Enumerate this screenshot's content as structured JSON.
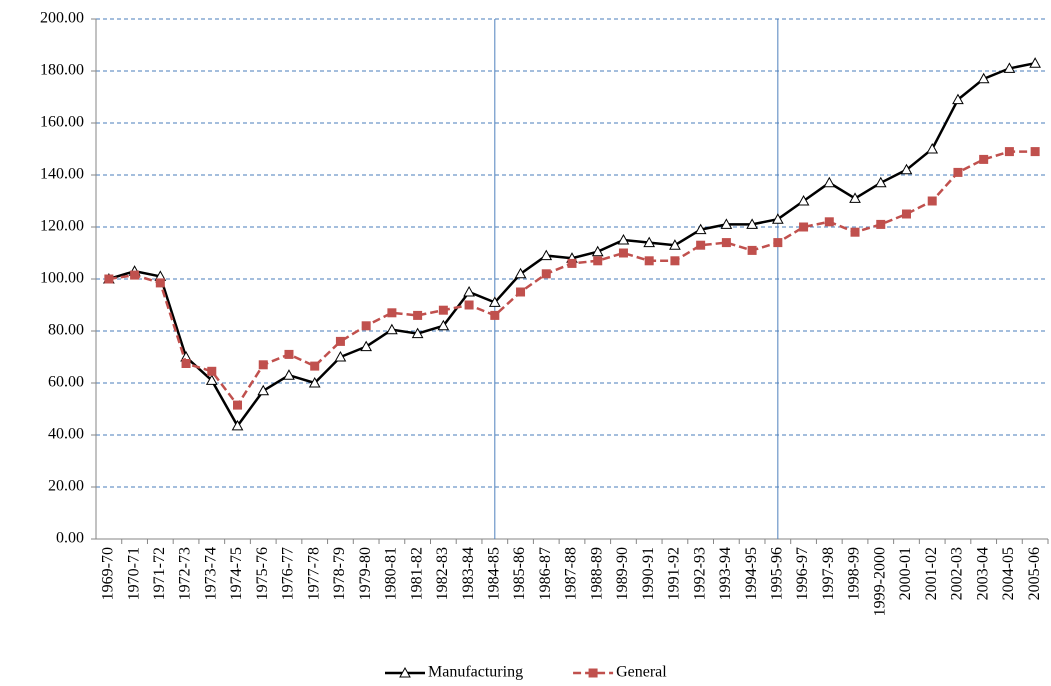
{
  "chart_data": {
    "type": "line",
    "categories": [
      "1969-70",
      "1970-71",
      "1971-72",
      "1972-73",
      "1973-74",
      "1974-75",
      "1975-76",
      "1976-77",
      "1977-78",
      "1978-79",
      "1979-80",
      "1980-81",
      "1981-82",
      "1982-83",
      "1983-84",
      "1984-85",
      "1985-86",
      "1986-87",
      "1987-88",
      "1988-89",
      "1989-90",
      "1990-91",
      "1991-92",
      "1992-93",
      "1993-94",
      "1994-95",
      "1995-96",
      "1996-97",
      "1997-98",
      "1998-99",
      "1999-2000",
      "2000-01",
      "2001-02",
      "2002-03",
      "2003-04",
      "2004-05",
      "2005-06"
    ],
    "series": [
      {
        "name": "Manufacturing",
        "color": "#000000",
        "marker": "triangle",
        "dash": false,
        "values": [
          100,
          103,
          101,
          70,
          61,
          43.5,
          57,
          63,
          60,
          70,
          74,
          80.5,
          79,
          82,
          95,
          91,
          102,
          109,
          108,
          110.5,
          115,
          114,
          113,
          119,
          121,
          121,
          123,
          130,
          137,
          131,
          137,
          142,
          150,
          169,
          177,
          181,
          183
        ]
      },
      {
        "name": "General",
        "color": "#c0504d",
        "marker": "square",
        "dash": true,
        "values": [
          100,
          101.5,
          98.5,
          67.5,
          64.5,
          51.5,
          67,
          71,
          66.5,
          76,
          82,
          87,
          86,
          88,
          90,
          86,
          95,
          102,
          106,
          107,
          110,
          107,
          107,
          113,
          114,
          111,
          114,
          120,
          122,
          118,
          121,
          125,
          130,
          141,
          146,
          149,
          149
        ]
      }
    ],
    "ylim": [
      0,
      200
    ],
    "yticks": [
      {
        "value": 0,
        "label": "0.00"
      },
      {
        "value": 20,
        "label": "20.00"
      },
      {
        "value": 40,
        "label": "40.00"
      },
      {
        "value": 60,
        "label": "60.00"
      },
      {
        "value": 80,
        "label": "80.00"
      },
      {
        "value": 100,
        "label": "100.00"
      },
      {
        "value": 120,
        "label": "120.00"
      },
      {
        "value": 140,
        "label": "140.00"
      },
      {
        "value": 160,
        "label": "160.00"
      },
      {
        "value": 180,
        "label": "180.00"
      },
      {
        "value": 200,
        "label": "200.00"
      }
    ],
    "grid": true,
    "vertical_lines": [
      "1984-85",
      "1995-96"
    ],
    "legend": "bottom"
  }
}
